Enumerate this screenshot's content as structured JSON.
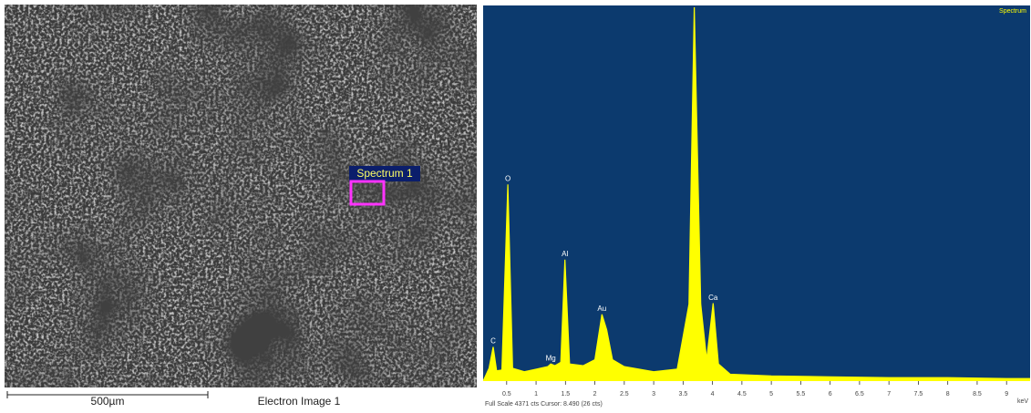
{
  "image": {
    "spectrum_label": "Spectrum 1",
    "scale_bar": "500µm",
    "caption": "Electron Image 1"
  },
  "chart_data": {
    "type": "line",
    "x": [
      0.1,
      0.2,
      0.27,
      0.33,
      0.42,
      0.52,
      0.6,
      0.8,
      1.0,
      1.2,
      1.25,
      1.32,
      1.42,
      1.49,
      1.57,
      1.8,
      2.0,
      2.12,
      2.2,
      2.3,
      2.5,
      3.0,
      3.4,
      3.6,
      3.69,
      3.8,
      3.9,
      4.01,
      4.1,
      4.3,
      5,
      6,
      7,
      8,
      9,
      9.4
    ],
    "series": [
      {
        "name": "Spectrum",
        "color": "#ffff00",
        "values": [
          0,
          150,
          400,
          120,
          130,
          2300,
          150,
          110,
          140,
          170,
          200,
          180,
          220,
          1420,
          200,
          180,
          250,
          780,
          600,
          250,
          170,
          110,
          140,
          900,
          4371,
          900,
          250,
          910,
          200,
          80,
          60,
          50,
          40,
          40,
          30,
          30
        ]
      }
    ],
    "xlim": [
      0.1,
      9.4
    ],
    "ylim": [
      0,
      4371
    ],
    "xticks": [
      0.5,
      1,
      1.5,
      2,
      2.5,
      3,
      3.5,
      4,
      4.5,
      5,
      5.5,
      6,
      6.5,
      7,
      7.5,
      8,
      8.5,
      9
    ],
    "x_unit": "keV",
    "annotations": [
      {
        "text": "C",
        "x": 0.27,
        "y": 400
      },
      {
        "text": "O",
        "x": 0.52,
        "y": 2300
      },
      {
        "text": "Mg",
        "x": 1.25,
        "y": 200
      },
      {
        "text": "Al",
        "x": 1.49,
        "y": 1420
      },
      {
        "text": "Au",
        "x": 2.12,
        "y": 780
      },
      {
        "text": "Ca",
        "x": 4.01,
        "y": 910
      }
    ],
    "footer": "Full Scale 4371 cts Cursor: 8.490  (26 cts)",
    "background": "#0c3a6e"
  }
}
